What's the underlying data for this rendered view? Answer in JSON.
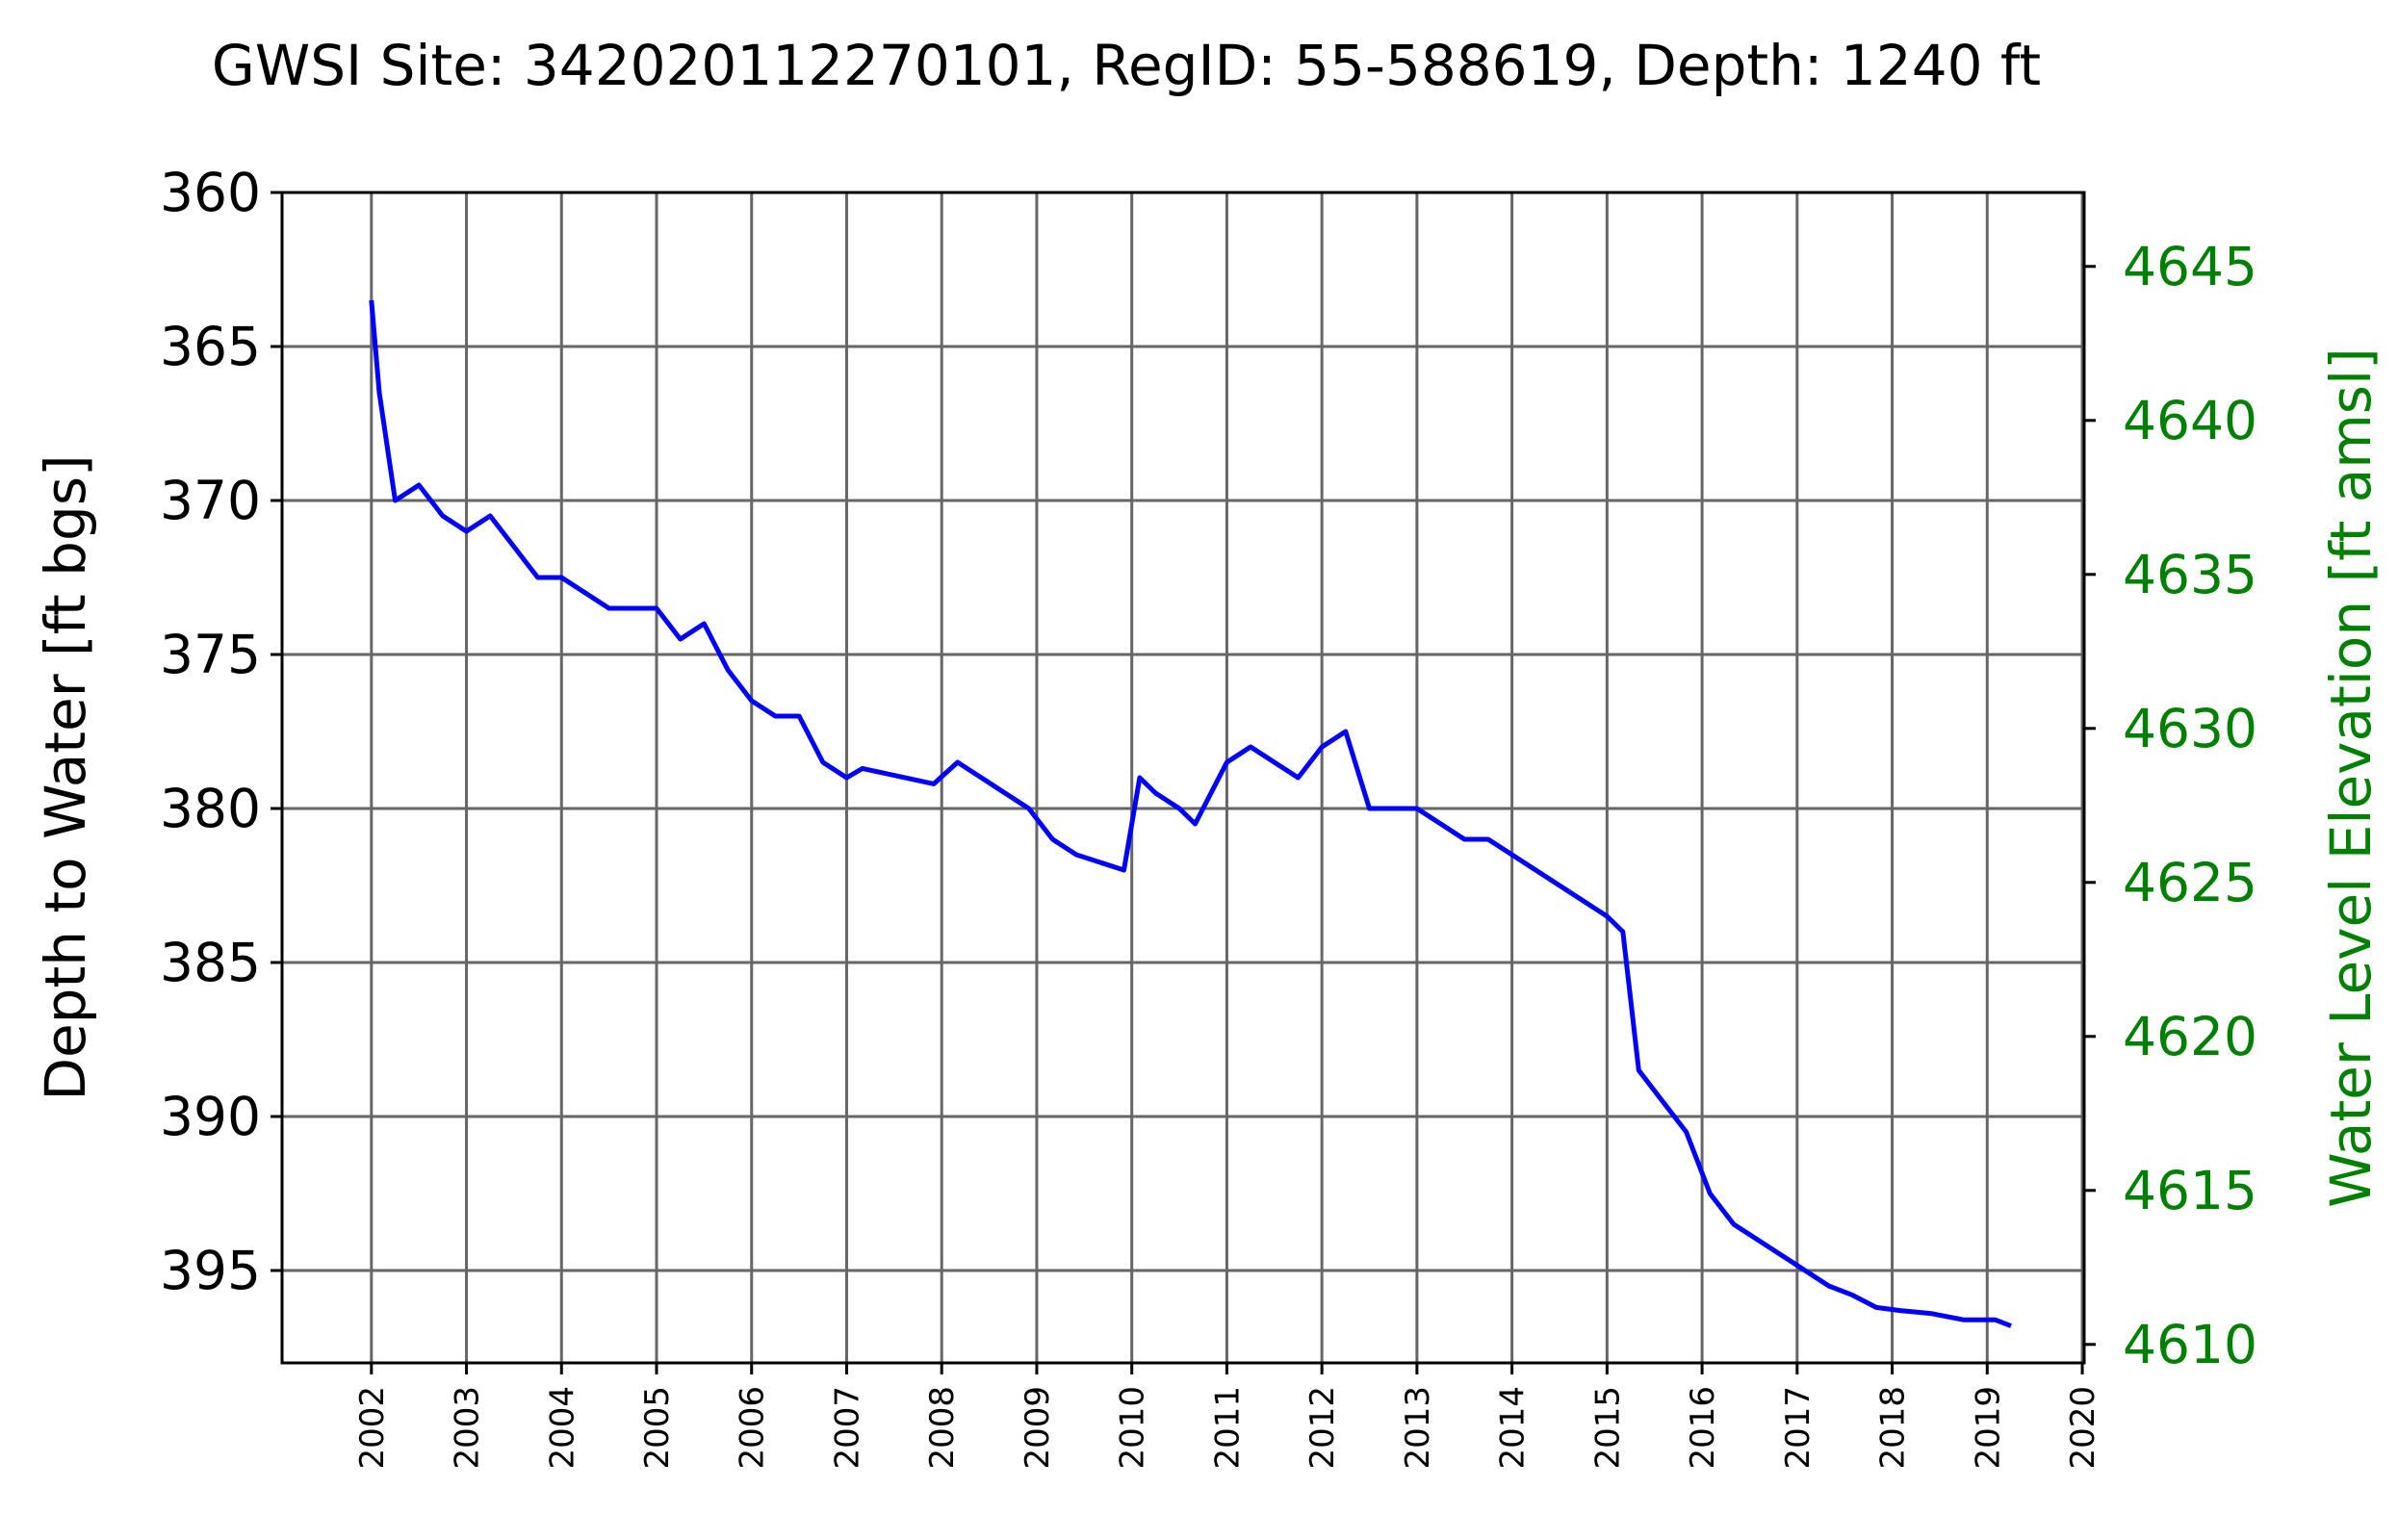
{
  "chart_data": {
    "type": "line",
    "title": "GWSI Site: 342020112270101, RegID: 55-588619, Depth: 1240 ft",
    "ylabel": "Depth to Water [ft bgs]",
    "ylabel_right": "Water Level Elevation [ft amsl]",
    "ylim": [
      360,
      398
    ],
    "ylim_right": [
      4609.4,
      4647.4
    ],
    "y_ticks": [
      360,
      365,
      370,
      375,
      380,
      385,
      390,
      395
    ],
    "y_tick_labels": [
      "360",
      "365",
      "370",
      "375",
      "380",
      "385",
      "390",
      "395"
    ],
    "y_ticks_right": [
      4610,
      4615,
      4620,
      4625,
      4630,
      4635,
      4640,
      4645
    ],
    "y_tick_labels_right": [
      "4610",
      "4615",
      "4620",
      "4625",
      "4630",
      "4635",
      "4640",
      "4645"
    ],
    "x_ticks": [
      "2002",
      "2003",
      "2004",
      "2005",
      "2006",
      "2007",
      "2008",
      "2009",
      "2010",
      "2011",
      "2012",
      "2013",
      "2014",
      "2015",
      "2016",
      "2017",
      "2018",
      "2019",
      "2020"
    ],
    "grid": true,
    "colors": {
      "series": "#0000ff",
      "right_axis": "#008000",
      "grid": "#666666"
    },
    "series": [
      {
        "x": [
          "2002-01",
          "2002-02",
          "2002-04",
          "2002-07",
          "2002-10",
          "2003-01",
          "2003-04",
          "2003-07",
          "2003-10",
          "2004-01",
          "2004-04",
          "2004-07",
          "2004-10",
          "2005-01",
          "2005-04",
          "2005-07",
          "2005-10",
          "2006-01",
          "2006-04",
          "2006-07",
          "2006-10",
          "2007-01",
          "2007-03",
          "2007-12",
          "2008-03",
          "2008-06",
          "2008-09",
          "2008-12",
          "2009-03",
          "2009-06",
          "2009-12",
          "2010-02",
          "2010-04",
          "2010-07",
          "2010-09",
          "2011-01",
          "2011-04",
          "2011-07",
          "2011-10",
          "2012-01",
          "2012-04",
          "2012-07",
          "2012-10",
          "2013-01",
          "2013-04",
          "2013-07",
          "2013-10",
          "2014-01",
          "2014-04",
          "2014-07",
          "2014-10",
          "2015-01",
          "2015-03",
          "2015-05",
          "2015-08",
          "2015-11",
          "2016-02",
          "2016-05",
          "2016-08",
          "2016-11",
          "2017-02",
          "2017-05",
          "2017-08",
          "2017-11",
          "2018-02",
          "2018-06",
          "2018-10",
          "2019-02",
          "2019-04"
        ],
        "values": [
          363.5,
          366.5,
          370.0,
          369.5,
          370.5,
          371.0,
          370.5,
          371.5,
          372.5,
          372.5,
          373.0,
          373.5,
          373.5,
          373.5,
          374.5,
          374.0,
          375.5,
          376.5,
          377.0,
          377.0,
          378.5,
          379.0,
          378.7,
          379.2,
          378.5,
          379.0,
          379.5,
          380.0,
          381.0,
          381.5,
          382.0,
          379.0,
          379.5,
          380.0,
          380.5,
          378.5,
          378.0,
          378.5,
          379.0,
          378.0,
          377.5,
          380.0,
          380.0,
          380.0,
          380.5,
          381.0,
          381.0,
          381.5,
          382.0,
          382.5,
          383.0,
          383.5,
          384.0,
          388.5,
          389.5,
          390.5,
          392.5,
          393.5,
          394.0,
          394.5,
          395.0,
          395.5,
          395.8,
          396.2,
          396.3,
          396.4,
          396.6,
          396.6,
          396.8
        ]
      }
    ]
  }
}
